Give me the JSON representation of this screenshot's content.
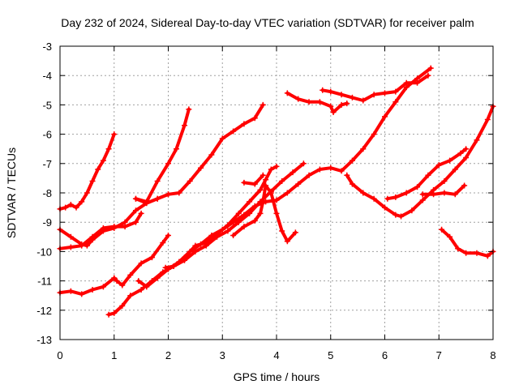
{
  "chart_data": {
    "type": "scatter",
    "title": "Day 232 of 2024, Sidereal Day-to-day VTEC variation (SDTVAR) for receiver palm",
    "xlabel": "GPS time / hours",
    "ylabel": "SDTVAR / TECUs",
    "xlim": [
      0,
      8
    ],
    "ylim": [
      -13,
      -3
    ],
    "x_ticks": [
      0,
      1,
      2,
      3,
      4,
      5,
      6,
      7,
      8
    ],
    "y_ticks": [
      -3,
      -4,
      -5,
      -6,
      -7,
      -8,
      -9,
      -10,
      -11,
      -12,
      -13
    ],
    "x_tick_labels": [
      "0",
      "1",
      "2",
      "3",
      "4",
      "5",
      "6",
      "7",
      "8"
    ],
    "y_tick_labels": [
      "-3",
      "-4",
      "-5",
      "-6",
      "-7",
      "-8",
      "-9",
      "-10",
      "-11",
      "-12",
      "-13"
    ],
    "grid": true,
    "marker": "plus",
    "color": "#ff0000",
    "series": [
      {
        "x": [
          0,
          0.1,
          0.2,
          0.3,
          0.4,
          0.5,
          0.6,
          0.7,
          0.8,
          0.9,
          1.0
        ],
        "y": [
          -8.55,
          -8.5,
          -8.4,
          -8.5,
          -8.3,
          -8.0,
          -7.6,
          -7.2,
          -6.9,
          -6.5,
          -6.0
        ]
      },
      {
        "x": [
          1.4,
          1.6,
          1.8,
          2.0,
          2.15,
          2.3,
          2.38
        ],
        "y": [
          -8.2,
          -8.3,
          -7.6,
          -7.0,
          -6.5,
          -5.7,
          -5.15
        ]
      },
      {
        "x": [
          1.4,
          1.6,
          1.8,
          2.0,
          2.2,
          2.4,
          2.6,
          2.8,
          3.0,
          3.2,
          3.4,
          3.6,
          3.75
        ],
        "y": [
          -8.2,
          -8.35,
          -8.2,
          -8.05,
          -8.0,
          -7.6,
          -7.15,
          -6.7,
          -6.15,
          -5.9,
          -5.65,
          -5.45,
          -5.0
        ]
      },
      {
        "x": [
          0,
          0.2,
          0.4,
          0.5,
          0.6,
          0.8,
          1.0,
          1.2,
          1.4,
          1.6,
          1.8,
          2.0
        ],
        "y": [
          -9.25,
          -9.5,
          -9.75,
          -9.8,
          -9.6,
          -9.3,
          -9.2,
          -9.0,
          -8.6,
          -8.35,
          -8.2,
          -8.05
        ]
      },
      {
        "x": [
          0,
          0.2,
          0.4,
          0.6,
          0.8,
          1.0,
          1.2,
          1.4,
          1.5
        ],
        "y": [
          -9.9,
          -9.85,
          -9.8,
          -9.5,
          -9.2,
          -9.15,
          -9.15,
          -9.0,
          -8.7
        ]
      },
      {
        "x": [
          0,
          0.2,
          0.4,
          0.6,
          0.8,
          1.0,
          1.05,
          1.15,
          1.3,
          1.5,
          1.7,
          1.9,
          2.0
        ],
        "y": [
          -11.4,
          -11.35,
          -11.45,
          -11.3,
          -11.2,
          -10.9,
          -11.0,
          -11.15,
          -10.8,
          -10.4,
          -10.2,
          -9.7,
          -9.45
        ]
      },
      {
        "x": [
          0.9,
          1.0,
          1.15,
          1.3,
          1.5,
          1.7,
          1.9,
          2.1,
          2.3,
          2.5,
          2.7,
          2.9,
          3.1,
          3.3,
          3.5,
          3.7,
          3.9,
          4.1,
          4.3,
          4.5
        ],
        "y": [
          -12.15,
          -12.1,
          -11.85,
          -11.5,
          -11.3,
          -11.0,
          -10.7,
          -10.5,
          -10.3,
          -10.0,
          -9.8,
          -9.5,
          -9.3,
          -9.0,
          -8.7,
          -8.3,
          -7.95,
          -7.6,
          -7.3,
          -7.0
        ]
      },
      {
        "x": [
          1.45,
          1.6,
          1.8,
          2.0,
          2.2,
          2.4,
          2.6,
          2.8,
          3.0,
          3.2,
          3.4,
          3.6,
          3.8,
          4.0,
          4.2,
          4.4,
          4.6,
          4.8,
          5.0,
          5.2,
          5.4,
          5.6,
          5.8,
          6.0,
          6.2,
          6.4,
          6.6,
          6.85
        ],
        "y": [
          -11.0,
          -11.2,
          -10.9,
          -10.6,
          -10.35,
          -10.0,
          -9.75,
          -9.45,
          -9.25,
          -9.0,
          -8.75,
          -8.45,
          -8.3,
          -8.25,
          -8.0,
          -7.7,
          -7.4,
          -7.2,
          -7.15,
          -7.25,
          -6.9,
          -6.5,
          -6.0,
          -5.4,
          -4.9,
          -4.4,
          -4.1,
          -3.75
        ]
      },
      {
        "x": [
          1.95,
          2.1,
          2.3,
          2.5,
          2.7,
          2.9,
          3.1,
          3.3,
          3.5,
          3.7,
          3.8,
          3.9,
          4.0
        ],
        "y": [
          -10.55,
          -10.5,
          -10.2,
          -9.8,
          -9.7,
          -9.4,
          -9.1,
          -8.7,
          -8.3,
          -7.9,
          -7.55,
          -7.2,
          -7.1
        ]
      },
      {
        "x": [
          3.2,
          3.4,
          3.6,
          3.7,
          3.75,
          3.8,
          3.9,
          4.0,
          4.1,
          4.2,
          4.35
        ],
        "y": [
          -9.45,
          -9.15,
          -8.95,
          -8.7,
          -8.3,
          -7.75,
          -8.0,
          -8.7,
          -9.3,
          -9.65,
          -9.35
        ]
      },
      {
        "x": [
          3.4,
          3.6,
          3.75
        ],
        "y": [
          -7.65,
          -7.7,
          -7.4
        ]
      },
      {
        "x": [
          4.2,
          4.4,
          4.6,
          4.8,
          5.0,
          5.05,
          5.2,
          5.3
        ],
        "y": [
          -4.6,
          -4.8,
          -4.9,
          -4.9,
          -5.05,
          -5.25,
          -5.0,
          -4.95
        ]
      },
      {
        "x": [
          4.85,
          5.0,
          5.2,
          5.4,
          5.6,
          5.8,
          6.0,
          6.2,
          6.4,
          6.6,
          6.8
        ],
        "y": [
          -4.5,
          -4.55,
          -4.65,
          -4.75,
          -4.85,
          -4.65,
          -4.6,
          -4.55,
          -4.25,
          -4.25,
          -4.0
        ]
      },
      {
        "x": [
          5.3,
          5.4,
          5.6,
          5.8,
          6.0,
          6.2,
          6.3,
          6.5,
          6.7,
          6.9,
          7.1,
          7.3,
          7.5,
          7.7,
          7.9,
          8.0
        ],
        "y": [
          -7.4,
          -7.7,
          -8.0,
          -8.2,
          -8.5,
          -8.75,
          -8.8,
          -8.6,
          -8.25,
          -7.9,
          -7.6,
          -7.2,
          -6.8,
          -6.2,
          -5.5,
          -5.05
        ]
      },
      {
        "x": [
          6.05,
          6.2,
          6.4,
          6.6,
          6.8,
          7.0,
          7.2,
          7.4,
          7.5
        ],
        "y": [
          -8.2,
          -8.15,
          -8.0,
          -7.8,
          -7.4,
          -7.05,
          -6.9,
          -6.65,
          -6.5
        ]
      },
      {
        "x": [
          6.7,
          6.9,
          7.1,
          7.3,
          7.47
        ],
        "y": [
          -8.05,
          -8.05,
          -8.0,
          -8.05,
          -7.75
        ]
      },
      {
        "x": [
          7.05,
          7.2,
          7.35,
          7.5,
          7.7,
          7.9,
          8.0
        ],
        "y": [
          -9.25,
          -9.5,
          -9.9,
          -10.05,
          -10.05,
          -10.15,
          -10.0
        ]
      }
    ]
  }
}
